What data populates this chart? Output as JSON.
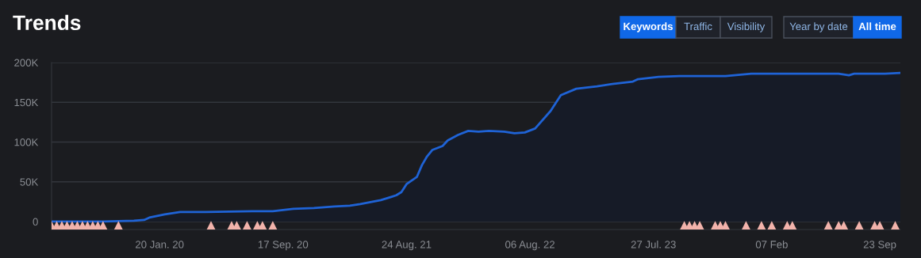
{
  "chart_data": {
    "type": "area",
    "title": "Trends",
    "annotations": [
      "Keywords",
      "Traffic",
      "Visibility",
      "Year by date",
      "All time"
    ],
    "ylim": [
      -10000,
      200000
    ],
    "yticks": [
      0,
      {
        "value": 50000,
        "label": "50K"
      },
      {
        "value": 100000,
        "label": "100K"
      },
      {
        "value": 150000,
        "label": "150K"
      },
      {
        "value": 200000,
        "label": "200K"
      }
    ],
    "grid": "y",
    "categories": [
      null,
      null,
      null,
      null,
      null,
      null,
      null,
      null,
      null,
      null,
      null,
      null,
      null,
      null,
      null,
      null,
      null,
      null,
      null,
      null,
      null,
      "20 Jan. 20",
      null,
      null,
      null,
      null,
      null,
      null,
      null,
      null,
      null,
      null,
      null,
      null,
      null,
      null,
      null,
      null,
      null,
      null,
      null,
      null,
      null,
      null,
      null,
      "17 Sep. 20",
      null,
      null,
      null,
      null,
      null,
      null,
      null,
      null,
      null,
      null,
      null,
      null,
      null,
      null,
      null,
      null,
      null,
      null,
      null,
      null,
      null,
      null,
      null,
      "24 Aug. 21",
      null,
      null,
      null,
      null,
      null,
      null,
      null,
      null,
      null,
      null,
      null,
      null,
      null,
      null,
      null,
      null,
      null,
      null,
      null,
      null,
      null,
      null,
      null,
      "06 Aug. 22",
      null,
      null,
      null,
      null,
      null,
      null,
      null,
      null,
      null,
      null,
      null,
      null,
      null,
      null,
      null,
      null,
      null,
      null,
      null,
      null,
      null,
      null,
      null,
      "27 Jul. 23",
      null,
      null,
      null,
      null,
      null,
      null,
      null,
      null,
      null,
      null,
      null,
      null,
      null,
      null,
      null,
      null,
      null,
      null,
      null,
      null,
      null,
      null,
      "07 Feb",
      null,
      null,
      null,
      null,
      null,
      null,
      null,
      null,
      null,
      null,
      null,
      null,
      null,
      null,
      null,
      null,
      null,
      null,
      null,
      null,
      "23 Sep",
      null,
      null,
      null,
      null
    ],
    "series": [
      {
        "color": "#1f63d6",
        "values": [
          0,
          null,
          null,
          null,
          null,
          null,
          null,
          null,
          null,
          null,
          0,
          null,
          null,
          null,
          null,
          null,
          1000,
          null,
          2000,
          5000,
          null,
          null,
          9000,
          10000,
          null,
          12000,
          null,
          null,
          null,
          null,
          12000,
          null,
          null,
          null,
          null,
          null,
          null,
          null,
          null,
          13000,
          null,
          null,
          null,
          13000,
          null,
          null,
          null,
          16000,
          null,
          null,
          null,
          17000,
          null,
          null,
          null,
          19000,
          null,
          null,
          20000,
          null,
          22000,
          null,
          null,
          null,
          27000,
          null,
          31000,
          33000,
          37000,
          47000,
          null,
          56000,
          71000,
          82000,
          90000,
          null,
          95000,
          102000,
          null,
          109000,
          null,
          114000,
          null,
          113000,
          null,
          114000,
          null,
          null,
          113000,
          null,
          111000,
          null,
          112000,
          null,
          117000,
          null,
          null,
          139000,
          null,
          159000,
          null,
          null,
          167000,
          null,
          null,
          null,
          170000,
          null,
          null,
          173000,
          null,
          null,
          null,
          176000,
          179000,
          null,
          null,
          null,
          182000,
          null,
          null,
          null,
          183000,
          null,
          null,
          null,
          null,
          null,
          null,
          null,
          null,
          183000,
          null,
          null,
          null,
          null,
          186000,
          null,
          null,
          null,
          null,
          null,
          186000,
          null,
          null,
          null,
          null,
          null,
          null,
          null,
          null,
          null,
          null,
          186000,
          null,
          184000,
          186000,
          null,
          null,
          null,
          null,
          null,
          186000,
          null,
          null,
          187000
        ]
      },
      {
        "type": "scatter",
        "marker": "triangle",
        "color": "#f2b3ab",
        "values": [
          -5000,
          -5000,
          -5000,
          -5000,
          -5000,
          -5000,
          -5000,
          -5000,
          -5000,
          -5000,
          -5000,
          null,
          null,
          -5000,
          null,
          null,
          null,
          null,
          null,
          null,
          null,
          null,
          null,
          null,
          null,
          null,
          null,
          null,
          null,
          null,
          null,
          -5000,
          null,
          null,
          null,
          -5000,
          -5000,
          null,
          -5000,
          null,
          -5000,
          -5000,
          null,
          -5000,
          null,
          null,
          null,
          null,
          null,
          null,
          null,
          null,
          null,
          null,
          null,
          null,
          null,
          null,
          null,
          null,
          null,
          null,
          null,
          null,
          null,
          null,
          null,
          null,
          null,
          null,
          null,
          null,
          null,
          null,
          null,
          null,
          null,
          null,
          null,
          null,
          null,
          null,
          null,
          null,
          null,
          null,
          null,
          null,
          null,
          null,
          null,
          null,
          null,
          null,
          null,
          null,
          null,
          null,
          null,
          null,
          null,
          null,
          null,
          null,
          null,
          null,
          null,
          null,
          null,
          null,
          null,
          null,
          null,
          null,
          null,
          null,
          null,
          null,
          null,
          null,
          null,
          null,
          null,
          -5000,
          -5000,
          -5000,
          -5000,
          null,
          null,
          -5000,
          -5000,
          -5000,
          null,
          null,
          null,
          -5000,
          null,
          null,
          -5000,
          null,
          -5000,
          null,
          null,
          -5000,
          -5000,
          null,
          null,
          null,
          null,
          null,
          null,
          -5000,
          null,
          -5000,
          -5000,
          null,
          null,
          -5000,
          null,
          null,
          -5000,
          -5000,
          null,
          null,
          -5000,
          null
        ]
      }
    ]
  }
}
